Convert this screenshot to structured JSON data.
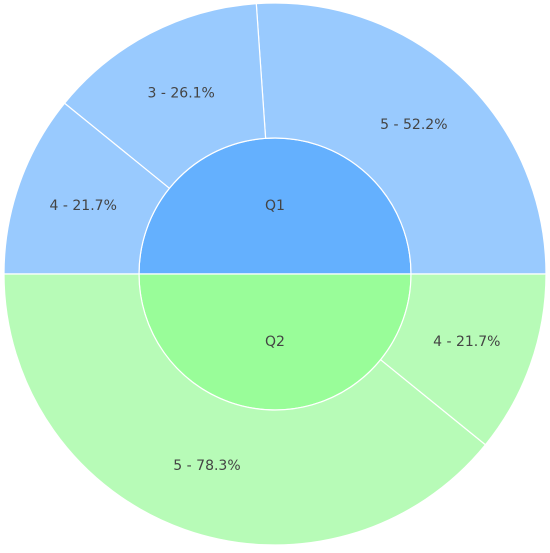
{
  "chart_data": {
    "type": "sunburst",
    "series": [
      {
        "name": "Q1",
        "value": 50,
        "color": "#64b0fe",
        "child_color": "#99cafe",
        "children": [
          {
            "label": "5 - 52.2%",
            "value": 52.2
          },
          {
            "label": "3 - 26.1%",
            "value": 26.1
          },
          {
            "label": "4 - 21.7%",
            "value": 21.7
          }
        ]
      },
      {
        "name": "Q2",
        "value": 50,
        "color": "#99fd99",
        "child_color": "#b7fbb7",
        "children": [
          {
            "label": "5 - 78.3%",
            "value": 78.3
          },
          {
            "label": "4 - 21.7%",
            "value": 21.7
          }
        ]
      }
    ]
  }
}
